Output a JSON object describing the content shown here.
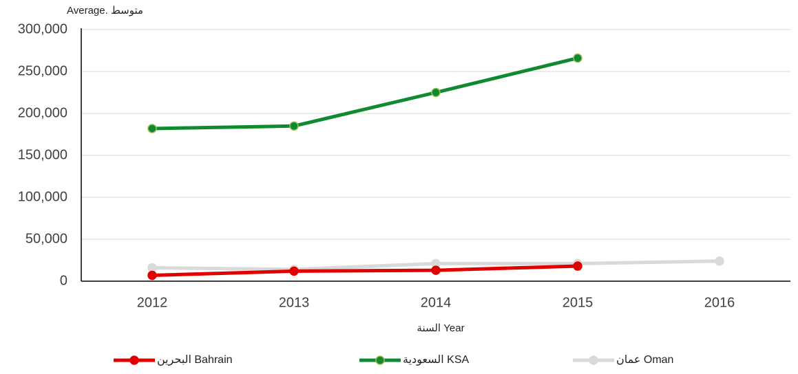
{
  "chart_data": {
    "type": "line",
    "y_label": "Average. متوسط",
    "x_label": "السنة Year",
    "categories": [
      "2012",
      "2013",
      "2014",
      "2015",
      "2016"
    ],
    "series": [
      {
        "name": "البحرين Bahrain",
        "color": "#e00000",
        "values": [
          7000,
          12000,
          13000,
          18000,
          null
        ]
      },
      {
        "name": "السعودية KSA",
        "color": "#108a2e",
        "values": [
          182000,
          185000,
          225000,
          266000,
          null
        ]
      },
      {
        "name": "عمان Oman",
        "color": "#d9d9d9",
        "values": [
          16000,
          14000,
          21000,
          21000,
          24000
        ]
      }
    ],
    "ylim": [
      0,
      300000
    ],
    "yticks": [
      0,
      {
        "value": 50000,
        "label": "50,000"
      },
      {
        "value": 100000,
        "label": "100,000"
      },
      {
        "value": 150000,
        "label": "150,000"
      },
      {
        "value": 200000,
        "label": "200,000"
      },
      {
        "value": 250000,
        "label": "250,000"
      },
      {
        "value": 300000,
        "label": "300,000"
      }
    ],
    "grid": true,
    "legend": "bottom"
  }
}
